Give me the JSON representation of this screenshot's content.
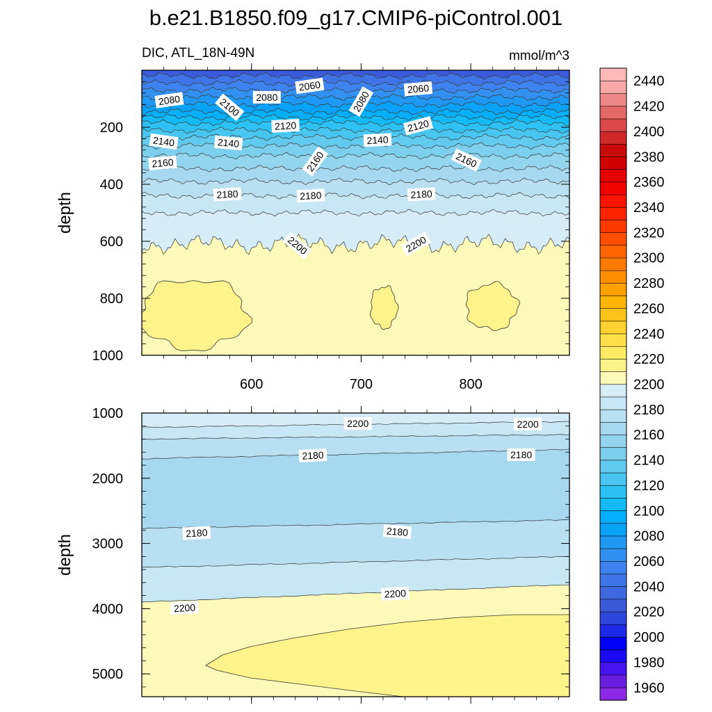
{
  "title": "b.e21.B1850.f09_g17.CMIP6-piControl.001",
  "chart_data": {
    "type": "contour",
    "variable_label": "DIC, ATL_18N-49N",
    "units_label": "mmol/m^3",
    "colorbar": {
      "levels": [
        1950,
        1960,
        1970,
        1980,
        1990,
        2000,
        2010,
        2020,
        2030,
        2040,
        2050,
        2060,
        2070,
        2080,
        2090,
        2100,
        2110,
        2120,
        2130,
        2140,
        2150,
        2160,
        2170,
        2180,
        2190,
        2200,
        2210,
        2220,
        2230,
        2240,
        2250,
        2260,
        2270,
        2280,
        2290,
        2300,
        2310,
        2320,
        2330,
        2340,
        2350,
        2360,
        2370,
        2380,
        2390,
        2400,
        2410,
        2420,
        2430,
        2440,
        2450
      ],
      "tick_labels": [
        "1960",
        "1980",
        "2000",
        "2020",
        "2040",
        "2060",
        "2080",
        "2100",
        "2120",
        "2140",
        "2160",
        "2180",
        "2200",
        "2220",
        "2240",
        "2260",
        "2280",
        "2300",
        "2320",
        "2340",
        "2360",
        "2380",
        "2400",
        "2420",
        "2440"
      ],
      "colors": [
        "#8c28e6",
        "#6a1fe0",
        "#4614ee",
        "#1a0af5",
        "#0000f8",
        "#1e28e8",
        "#2d46de",
        "#3a5ad9",
        "#3f68de",
        "#3f74e6",
        "#3d82ee",
        "#3190f0",
        "#1f98f4",
        "#0aa2f7",
        "#05aef9",
        "#12baf6",
        "#2ec2f4",
        "#49c5f2",
        "#63caef",
        "#7ccfed",
        "#93d4ee",
        "#a6d9f0",
        "#b8dff2",
        "#c8e7f4",
        "#d6ecf6",
        "#fdf9b8",
        "#fff48c",
        "#ffec64",
        "#ffe04a",
        "#ffd232",
        "#ffc41c",
        "#ffb508",
        "#ffa200",
        "#ff8e00",
        "#ff7a00",
        "#ff6400",
        "#ff4e00",
        "#ff3a00",
        "#ff2400",
        "#ff1200",
        "#f30000",
        "#e40000",
        "#d00000",
        "#c80a0a",
        "#d02828",
        "#da4848",
        "#e46868",
        "#ee8888",
        "#f8a8a8",
        "#ffb8b8"
      ]
    },
    "panels": [
      {
        "position": "top",
        "ylabel": "depth",
        "ylim": [
          1000,
          0
        ],
        "y_ticks": [
          200,
          400,
          600,
          800,
          1000
        ],
        "xlim": [
          500,
          890
        ],
        "x_ticks": [
          600,
          700,
          800
        ],
        "show_x_tick_labels": true,
        "contour_depths": [
          {
            "level": 2040,
            "depth": 20
          },
          {
            "level": 2050,
            "depth": 45
          },
          {
            "level": 2060,
            "depth": 70
          },
          {
            "level": 2070,
            "depth": 95
          },
          {
            "level": 2080,
            "depth": 120
          },
          {
            "level": 2090,
            "depth": 145
          },
          {
            "level": 2100,
            "depth": 165
          },
          {
            "level": 2110,
            "depth": 185
          },
          {
            "level": 2120,
            "depth": 210
          },
          {
            "level": 2130,
            "depth": 235
          },
          {
            "level": 2140,
            "depth": 265
          },
          {
            "level": 2150,
            "depth": 300
          },
          {
            "level": 2160,
            "depth": 345
          },
          {
            "level": 2170,
            "depth": 390
          },
          {
            "level": 2180,
            "depth": 440
          },
          {
            "level": 2190,
            "depth": 500
          },
          {
            "level": 2200,
            "depth": 610
          }
        ],
        "contour_labels": [
          {
            "text": "2080",
            "x": 525,
            "depth": 105,
            "angle": -8
          },
          {
            "text": "2100",
            "x": 580,
            "depth": 130,
            "angle": 40
          },
          {
            "text": "2080",
            "x": 614,
            "depth": 95,
            "angle": 0
          },
          {
            "text": "2060",
            "x": 653,
            "depth": 55,
            "angle": -8
          },
          {
            "text": "2080",
            "x": 700,
            "depth": 110,
            "angle": -60
          },
          {
            "text": "2060",
            "x": 752,
            "depth": 65,
            "angle": -5
          },
          {
            "text": "2120",
            "x": 631,
            "depth": 195,
            "angle": -3
          },
          {
            "text": "2120",
            "x": 752,
            "depth": 195,
            "angle": -15
          },
          {
            "text": "2140",
            "x": 520,
            "depth": 250,
            "angle": 8
          },
          {
            "text": "2140",
            "x": 579,
            "depth": 255,
            "angle": 5
          },
          {
            "text": "2140",
            "x": 715,
            "depth": 245,
            "angle": -3
          },
          {
            "text": "2160",
            "x": 519,
            "depth": 325,
            "angle": -5
          },
          {
            "text": "2160",
            "x": 658,
            "depth": 320,
            "angle": -55
          },
          {
            "text": "2160",
            "x": 796,
            "depth": 315,
            "angle": 25
          },
          {
            "text": "2180",
            "x": 578,
            "depth": 435,
            "angle": -3
          },
          {
            "text": "2180",
            "x": 654,
            "depth": 440,
            "angle": -3
          },
          {
            "text": "2180",
            "x": 755,
            "depth": 435,
            "angle": -3
          },
          {
            "text": "2200",
            "x": 642,
            "depth": 615,
            "angle": 40
          },
          {
            "text": "2200",
            "x": 750,
            "depth": 610,
            "angle": -30
          }
        ]
      },
      {
        "position": "bottom",
        "ylabel": "depth",
        "ylim": [
          5350,
          1000
        ],
        "y_ticks": [
          1000,
          2000,
          3000,
          4000,
          5000
        ],
        "xlim": [
          500,
          890
        ],
        "x_ticks": [
          600,
          700,
          800
        ],
        "show_x_tick_labels": false,
        "contour_labels": [
          {
            "text": "2200",
            "x": 697,
            "depth": 1160,
            "angle": 0
          },
          {
            "text": "2200",
            "x": 852,
            "depth": 1170,
            "angle": 0
          },
          {
            "text": "2180",
            "x": 656,
            "depth": 1650,
            "angle": -3
          },
          {
            "text": "2180",
            "x": 846,
            "depth": 1640,
            "angle": 0
          },
          {
            "text": "2180",
            "x": 550,
            "depth": 2840,
            "angle": -3
          },
          {
            "text": "2180",
            "x": 733,
            "depth": 2820,
            "angle": 5
          },
          {
            "text": "2200",
            "x": 539,
            "depth": 3990,
            "angle": -3
          },
          {
            "text": "2200",
            "x": 731,
            "depth": 3770,
            "angle": -3
          }
        ]
      }
    ]
  }
}
